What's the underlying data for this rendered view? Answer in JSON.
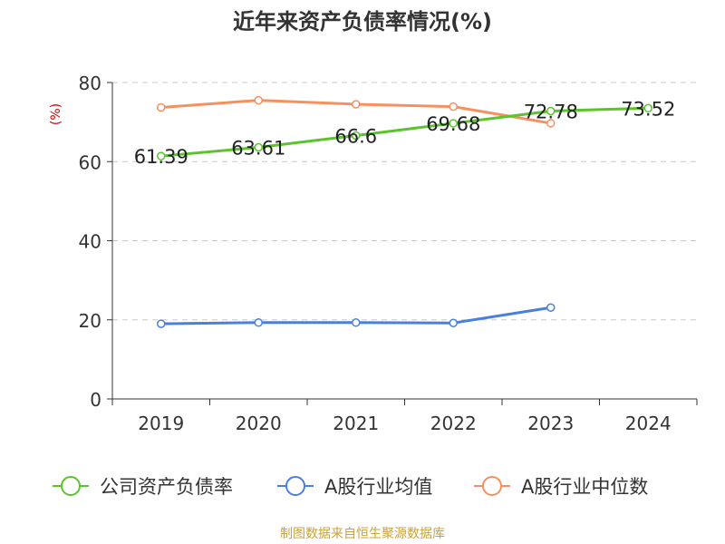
{
  "chart_data": {
    "type": "line",
    "title": "近年来资产负债率情况(%)",
    "ylabel": "(%)",
    "xlabel": "",
    "categories": [
      "2019",
      "2020",
      "2021",
      "2022",
      "2023",
      "2024"
    ],
    "ylim": [
      0,
      80
    ],
    "yticks": [
      "0",
      "20",
      "40",
      "60",
      "80"
    ],
    "grid": true,
    "legend_position": "bottom",
    "series": [
      {
        "name": "公司资产负债率",
        "color": "#5bc42d",
        "values": [
          61.39,
          63.61,
          66.6,
          69.68,
          72.78,
          73.52
        ],
        "labels": [
          "61.39",
          "63.61",
          "66.6",
          "69.68",
          "72.78",
          "73.52"
        ]
      },
      {
        "name": "A股行业均值",
        "color": "#4a7fdb",
        "values": [
          19.0,
          19.3,
          19.3,
          19.2,
          23.1,
          null
        ],
        "labels": []
      },
      {
        "name": "A股行业中位数",
        "color": "#f79060",
        "values": [
          73.7,
          75.5,
          74.5,
          73.9,
          69.7,
          null
        ],
        "labels": []
      }
    ]
  },
  "footer": {
    "source": "制图数据来自恒生聚源数据库"
  }
}
